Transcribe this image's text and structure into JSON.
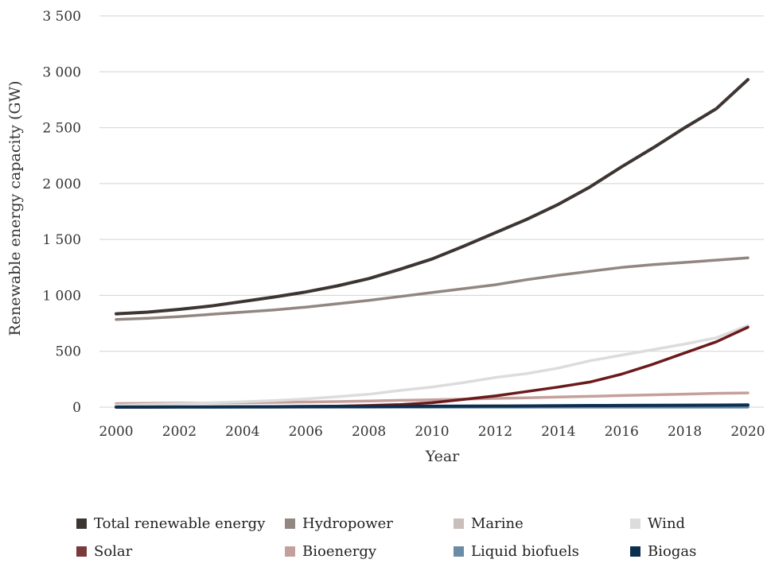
{
  "chart_data": {
    "type": "line",
    "title": "",
    "xlabel": "Year",
    "ylabel": "Renewable energy capacity (GW)",
    "xlim": [
      2000,
      2020
    ],
    "ylim": [
      0,
      3500
    ],
    "x_ticks": [
      "2000",
      "2002",
      "2004",
      "2006",
      "2008",
      "2010",
      "2012",
      "2014",
      "2016",
      "2018",
      "2020"
    ],
    "y_ticks": [
      "0",
      "500",
      "1 000",
      "1 500",
      "2 000",
      "2 500",
      "3 000",
      "3 500"
    ],
    "y_tick_values": [
      0,
      500,
      1000,
      1500,
      2000,
      2500,
      3000,
      3500
    ],
    "grid": "horizontal",
    "legend_position": "bottom",
    "x": [
      2000,
      2001,
      2002,
      2003,
      2004,
      2005,
      2006,
      2007,
      2008,
      2009,
      2010,
      2011,
      2012,
      2013,
      2014,
      2015,
      2016,
      2017,
      2018,
      2019,
      2020
    ],
    "series": [
      {
        "name": "Total renewable energy",
        "color": "#3d3532",
        "values": [
          835,
          850,
          875,
          905,
          945,
          985,
          1030,
          1085,
          1150,
          1235,
          1325,
          1440,
          1560,
          1680,
          1815,
          1970,
          2150,
          2320,
          2500,
          2670,
          2930
        ]
      },
      {
        "name": "Hydropower",
        "color": "#928680",
        "values": [
          785,
          795,
          810,
          830,
          850,
          870,
          895,
          925,
          955,
          990,
          1025,
          1060,
          1095,
          1140,
          1180,
          1215,
          1250,
          1275,
          1295,
          1315,
          1335
        ]
      },
      {
        "name": "Marine",
        "color": "#c9beb9",
        "values": [
          0.3,
          0.3,
          0.3,
          0.3,
          0.3,
          0.3,
          0.3,
          0.3,
          0.3,
          0.3,
          0.3,
          0.5,
          0.5,
          0.5,
          0.5,
          0.5,
          0.5,
          0.5,
          0.5,
          0.5,
          0.5
        ]
      },
      {
        "name": "Wind",
        "color": "#dddcdc",
        "values": [
          17,
          24,
          31,
          39,
          48,
          59,
          74,
          93,
          115,
          150,
          180,
          220,
          265,
          300,
          350,
          415,
          465,
          515,
          565,
          620,
          730
        ]
      },
      {
        "name": "Solar",
        "color": "#6b1a1c",
        "values": [
          1,
          1,
          2,
          3,
          4,
          5,
          7,
          9,
          15,
          23,
          40,
          70,
          100,
          140,
          180,
          225,
          295,
          385,
          485,
          585,
          715
        ]
      },
      {
        "name": "Bioenergy",
        "color": "#c4a09c",
        "values": [
          32,
          34,
          36,
          38,
          40,
          43,
          46,
          50,
          55,
          61,
          66,
          72,
          78,
          84,
          91,
          97,
          104,
          110,
          117,
          124,
          127
        ]
      },
      {
        "name": "Liquid biofuels",
        "color": "#5f88a8",
        "values": [
          1,
          1,
          1,
          1,
          1,
          1,
          1,
          1,
          1,
          1,
          1,
          1,
          1,
          1,
          1,
          1,
          1,
          1,
          1,
          1,
          1
        ]
      },
      {
        "name": "Biogas",
        "color": "#0d2f4f",
        "values": [
          1,
          1,
          2,
          2,
          3,
          3,
          4,
          5,
          6,
          7,
          8,
          9,
          10,
          11,
          12,
          14,
          15,
          16,
          17,
          18,
          19
        ]
      }
    ]
  },
  "legend": {
    "items": [
      {
        "label": "Total renewable energy",
        "color": "#3d3532"
      },
      {
        "label": "Hydropower",
        "color": "#928680"
      },
      {
        "label": "Marine",
        "color": "#c9beb9"
      },
      {
        "label": "Wind",
        "color": "#dddcdc"
      },
      {
        "label": "Solar",
        "color": "#7a3a3c"
      },
      {
        "label": "Bioenergy",
        "color": "#c4a09c"
      },
      {
        "label": "Liquid biofuels",
        "color": "#6a8ca6"
      },
      {
        "label": "Biogas",
        "color": "#0d2f4f"
      }
    ]
  }
}
